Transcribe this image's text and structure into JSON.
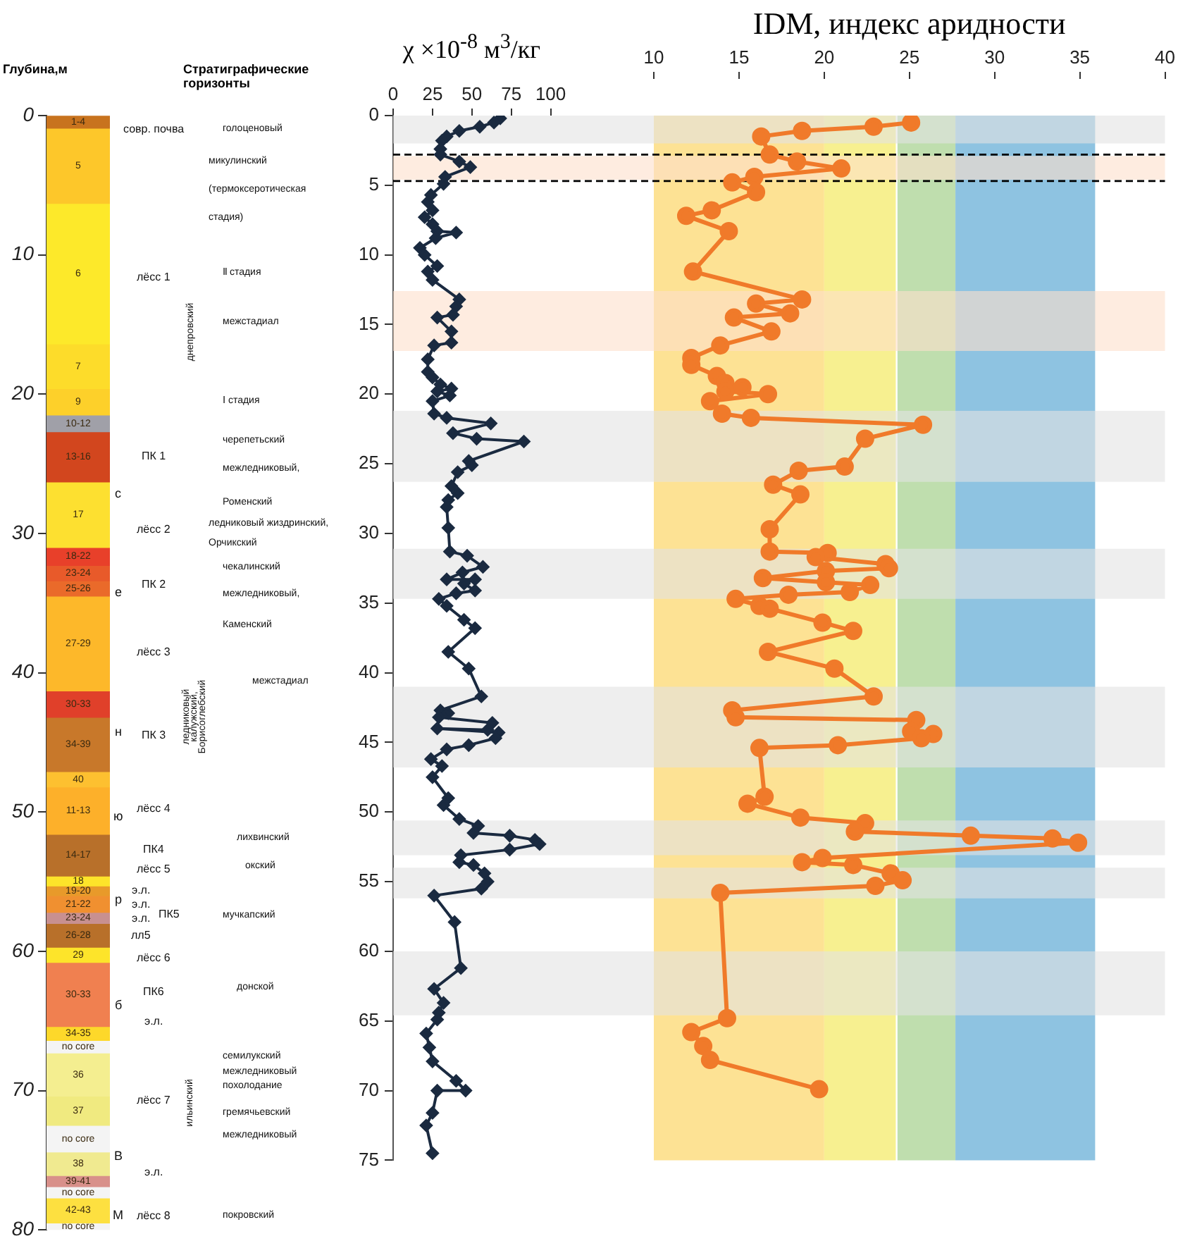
{
  "chart_data": [
    {
      "type": "bar",
      "stacked": true,
      "ylabel": "Глубина,м",
      "categories": [
        null
      ],
      "ylim": [
        80,
        0
      ],
      "yticks": [
        0,
        10,
        20,
        30,
        40,
        50,
        60,
        70,
        80
      ],
      "series": [
        {
          "name": "1-4",
          "color": "#c8731e",
          "values": [
            0.9
          ]
        },
        {
          "name": "5",
          "color": "#fdc72a",
          "values": [
            5.4
          ]
        },
        {
          "name": "6",
          "color": "#fde92a",
          "values": [
            10.1
          ]
        },
        {
          "name": "7",
          "color": "#fddc2a",
          "values": [
            3.2
          ]
        },
        {
          "name": "9",
          "color": "#fdd02a",
          "values": [
            1.9
          ]
        },
        {
          "name": "10-12",
          "color": "#a0a0a8",
          "values": [
            1.2
          ]
        },
        {
          "name": "13-16",
          "color": "#d2461e",
          "values": [
            3.6
          ]
        },
        {
          "name": "17",
          "color": "#fde030",
          "values": [
            4.7
          ]
        },
        {
          "name": "18-22",
          "color": "#e8402a",
          "values": [
            1.3
          ]
        },
        {
          "name": "23-24",
          "color": "#e85a2a",
          "values": [
            1.1
          ]
        },
        {
          "name": "25-26",
          "color": "#ea6a2a",
          "values": [
            1.1
          ]
        },
        {
          "name": "27-29",
          "color": "#fdb82a",
          "values": [
            6.8
          ]
        },
        {
          "name": "30-33",
          "color": "#e0402a",
          "values": [
            1.9
          ]
        },
        {
          "name": "34-39",
          "color": "#c8782a",
          "values": [
            3.9
          ]
        },
        {
          "name": "40",
          "color": "#fdc030",
          "values": [
            1.1
          ]
        },
        {
          "name": "11-13",
          "color": "#fdb02a",
          "values": [
            3.4
          ]
        },
        {
          "name": "14-17",
          "color": "#b8702a",
          "values": [
            3.0
          ]
        },
        {
          "name": "18",
          "color": "#fde42a",
          "values": [
            0.7
          ]
        },
        {
          "name": "19-20",
          "color": "#e89a2a",
          "values": [
            0.7
          ]
        },
        {
          "name": "21-22",
          "color": "#f09030",
          "values": [
            1.2
          ]
        },
        {
          "name": "23-24",
          "color": "#c89090",
          "values": [
            0.8
          ]
        },
        {
          "name": "26-28",
          "color": "#b8702a",
          "values": [
            1.7
          ]
        },
        {
          "name": "29",
          "color": "#fde42a",
          "values": [
            1.1
          ]
        },
        {
          "name": "30-33",
          "color": "#f08050",
          "values": [
            4.6
          ]
        },
        {
          "name": "34-35",
          "color": "#fdd82a",
          "values": [
            1.0
          ]
        },
        {
          "name": "no core",
          "color": "#f4f4f4",
          "values": [
            0.9
          ]
        },
        {
          "name": "36",
          "color": "#f4ee90",
          "values": [
            3.1
          ]
        },
        {
          "name": "37",
          "color": "#f0ea80",
          "values": [
            2.1
          ]
        },
        {
          "name": "no core",
          "color": "#f4f4f4",
          "values": [
            1.9
          ]
        },
        {
          "name": "38",
          "color": "#f0ea90",
          "values": [
            1.7
          ]
        },
        {
          "name": "39-41",
          "color": "#d8908a",
          "values": [
            0.8
          ]
        },
        {
          "name": "no core",
          "color": "#f4f4f4",
          "values": [
            0.8
          ]
        },
        {
          "name": "42-43",
          "color": "#fde040",
          "values": [
            1.8
          ]
        },
        {
          "name": "no core",
          "color": "#f4f4f4",
          "values": [
            0.5
          ]
        }
      ]
    },
    {
      "type": "other",
      "title": "Стратиграфические горизонты",
      "annotations": [
        "с",
        "е",
        "н",
        "ю",
        "р",
        "б",
        "B",
        "M",
        "совр. почва",
        "лёсс 1",
        "ПК 1",
        "лёсс 2",
        "ПК 2",
        "лёсс 3",
        "ПК 3",
        "лёсс 4",
        "ПК4",
        "лёсс 5",
        "э.л.",
        "э.л.",
        "э.л.",
        "лл5",
        "ПК5",
        "лёсс 6",
        "ПК6",
        "э.л.",
        "лёсс 7",
        "э.л.",
        "лёсс 8",
        "голоценовый",
        "микулинский",
        "(термоксеротическая",
        "стадия)",
        "днепровский",
        "Ⅱ стадия",
        "межстадиал",
        "Ⅰ стадия",
        "черепетьский",
        "межледниковый,",
        "Роменский",
        "ледниковый жиздринский,",
        "Орчикский",
        "чекалинский",
        "межледниковый,",
        "Каменский",
        "межстадиал",
        "ледниковый",
        "калужский,",
        "Борисоглебский",
        "лихвинский",
        "окский",
        "мучкапский",
        "донской",
        "ильинский",
        "семилукский",
        "межледниковый",
        "похолодание",
        "гремячьевский",
        "межледниковый",
        "покровский"
      ]
    },
    {
      "type": "line",
      "xlabel": "χ ×10$^{-8}$ м$^{3}$/кг",
      "x2label": "IDM, индекс аридности",
      "xlim": [
        0,
        490
      ],
      "xticks": [
        0,
        25,
        50,
        75,
        100
      ],
      "x2lim": [
        -5.3,
        40
      ],
      "x2ticks": [
        10,
        15,
        20,
        25,
        30,
        35,
        40
      ],
      "ylim": [
        75,
        0
      ],
      "yticks": [
        0,
        5,
        10,
        15,
        20,
        25,
        30,
        35,
        40,
        45,
        50,
        55,
        60,
        65,
        70,
        75
      ],
      "series": [
        {
          "color": "#1a2a40",
          "marker": "diamond",
          "x": [
            68,
            64,
            55,
            42,
            34,
            31,
            30,
            30,
            42,
            49,
            33,
            32,
            24,
            22,
            25,
            20,
            25,
            28,
            40,
            27,
            17,
            20,
            28,
            22,
            25,
            42,
            40,
            38,
            28,
            37,
            37,
            26,
            22,
            22,
            25,
            30,
            37,
            28,
            36,
            25,
            26,
            34,
            62,
            38,
            53,
            83,
            48,
            50,
            41,
            37,
            41,
            35,
            34,
            35,
            36,
            47,
            57,
            44,
            34,
            52,
            45,
            52,
            40,
            29,
            34,
            45,
            52,
            35,
            48,
            56,
            30,
            35,
            29,
            63,
            60,
            28,
            67,
            65,
            48,
            34,
            24,
            31,
            25,
            35,
            32,
            42,
            54,
            51,
            74,
            90,
            93,
            74,
            43,
            42,
            51,
            58,
            60,
            56,
            26,
            39,
            43,
            26,
            32,
            29,
            28,
            21,
            23,
            25,
            40,
            46,
            28,
            25,
            21,
            25
          ],
          "values": [
            0.2,
            0.5,
            0.8,
            1.1,
            1.5,
            1.8,
            2.4,
            2.8,
            3.3,
            3.7,
            4.4,
            4.9,
            5.7,
            6.2,
            6.8,
            7.3,
            7.8,
            8.3,
            8.4,
            8.8,
            9.5,
            10.0,
            10.8,
            11.2,
            11.8,
            13.2,
            13.7,
            14.3,
            14.5,
            15.5,
            16.3,
            16.5,
            17.5,
            18.4,
            18.8,
            19.3,
            19.6,
            19.8,
            20.1,
            20.5,
            21.4,
            21.7,
            22.1,
            22.8,
            23.2,
            23.4,
            24.8,
            25.1,
            25.6,
            26.6,
            27.1,
            27.6,
            28.1,
            29.6,
            31.3,
            31.6,
            32.4,
            32.8,
            33.3,
            33.3,
            33.6,
            34.1,
            34.3,
            34.7,
            35.2,
            36.2,
            36.8,
            38.5,
            39.7,
            41.7,
            42.7,
            42.9,
            43.2,
            43.6,
            44.1,
            44.0,
            44.3,
            44.7,
            45.2,
            45.5,
            46.2,
            46.7,
            47.5,
            49.0,
            49.5,
            50.5,
            51.0,
            51.5,
            51.7,
            52.0,
            52.3,
            52.7,
            53.1,
            53.6,
            53.8,
            54.4,
            55.0,
            55.5,
            56.0,
            57.9,
            61.2,
            62.7,
            63.7,
            64.4,
            64.9,
            65.9,
            66.9,
            67.9,
            69.3,
            70.0,
            70.0,
            71.6,
            72.5,
            74.5
          ]
        },
        {
          "color": "#f07a2a",
          "marker": "circle",
          "axis": "x2",
          "x": [
            25.1,
            22.9,
            18.7,
            16.3,
            16.8,
            18.4,
            21.0,
            15.9,
            14.6,
            16.0,
            13.4,
            11.9,
            14.4,
            12.3,
            18.7,
            16.0,
            18.0,
            14.7,
            16.9,
            13.9,
            12.2,
            12.2,
            13.7,
            14.2,
            15.2,
            14.2,
            16.7,
            13.3,
            14.0,
            15.7,
            25.8,
            22.4,
            21.2,
            18.5,
            17.0,
            18.6,
            16.8,
            16.8,
            20.2,
            19.5,
            23.6,
            23.8,
            20.1,
            16.4,
            20.1,
            22.7,
            21.5,
            17.9,
            14.8,
            16.2,
            16.8,
            19.9,
            21.7,
            16.7,
            20.6,
            22.9,
            14.6,
            14.8,
            25.4,
            25.1,
            26.4,
            25.7,
            20.8,
            16.2,
            16.5,
            15.5,
            18.6,
            22.4,
            21.8,
            28.6,
            33.4,
            34.9,
            19.9,
            18.7,
            21.7,
            23.9,
            24.6,
            23.0,
            13.9,
            14.3,
            12.2,
            12.9,
            13.3,
            19.7
          ],
          "values": [
            0.5,
            0.8,
            1.1,
            1.5,
            2.8,
            3.3,
            3.8,
            4.4,
            4.8,
            5.5,
            6.8,
            7.2,
            8.3,
            11.2,
            13.2,
            13.5,
            14.2,
            14.5,
            15.5,
            16.5,
            17.4,
            17.9,
            18.7,
            19.2,
            19.5,
            19.8,
            20.0,
            20.5,
            21.4,
            21.7,
            22.2,
            23.2,
            25.2,
            25.5,
            26.5,
            27.2,
            29.7,
            31.3,
            31.4,
            31.7,
            32.2,
            32.5,
            32.7,
            33.2,
            33.5,
            33.7,
            34.2,
            34.4,
            34.7,
            35.2,
            35.4,
            36.4,
            37.0,
            38.5,
            39.7,
            41.7,
            42.7,
            43.2,
            43.4,
            44.2,
            44.4,
            44.7,
            45.2,
            45.4,
            48.9,
            49.4,
            50.4,
            50.8,
            51.4,
            51.7,
            51.9,
            52.2,
            53.3,
            53.6,
            53.8,
            54.4,
            54.9,
            55.3,
            55.8,
            64.8,
            65.8,
            66.8,
            67.8,
            69.9
          ]
        }
      ],
      "bands": [
        {
          "axis": "x2",
          "from": 10,
          "to": 20,
          "color": "#fde08e"
        },
        {
          "axis": "x2",
          "from": 20,
          "to": 24.2,
          "color": "#f7ef8a"
        },
        {
          "axis": "x2",
          "from": 24.3,
          "to": 27.7,
          "color": "#bcdcaa"
        },
        {
          "axis": "x2",
          "from": 27.7,
          "to": 35.9,
          "color": "#88c0df"
        },
        {
          "axis": "y",
          "from": 0,
          "to": 2.0,
          "color": "#e2e2e2"
        },
        {
          "axis": "y",
          "from": 21.2,
          "to": 26.3,
          "color": "#e2e2e2"
        },
        {
          "axis": "y",
          "from": 31.1,
          "to": 34.7,
          "color": "#e2e2e2"
        },
        {
          "axis": "y",
          "from": 41.0,
          "to": 46.8,
          "color": "#e2e2e2"
        },
        {
          "axis": "y",
          "from": 50.6,
          "to": 53.1,
          "color": "#e2e2e2"
        },
        {
          "axis": "y",
          "from": 54.0,
          "to": 56.2,
          "color": "#e2e2e2"
        },
        {
          "axis": "y",
          "from": 60.0,
          "to": 64.6,
          "color": "#e2e2e2"
        },
        {
          "axis": "y",
          "from": 2.9,
          "to": 4.6,
          "color": "#fde0cc"
        },
        {
          "axis": "y",
          "from": 12.6,
          "to": 16.9,
          "color": "#fde0cc"
        }
      ],
      "ref_lines": [
        {
          "axis": "y",
          "value": 2.8,
          "color": "#000000",
          "line_style": "dashed"
        },
        {
          "axis": "y",
          "value": 4.7,
          "color": "#000000",
          "line_style": "dashed"
        }
      ]
    }
  ]
}
